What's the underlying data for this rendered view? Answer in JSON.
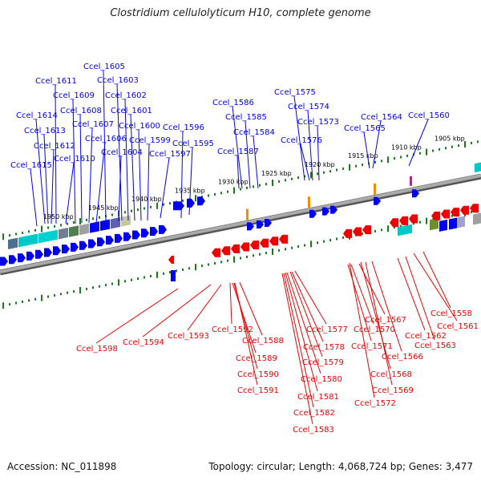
{
  "title": "Clostridium cellulolyticum H10, complete genome",
  "footer": {
    "accession": "Accession: NC_011898",
    "topology": "Topology: circular; Length: 4,068,724 bp; Genes: 3,477"
  },
  "colors": {
    "forward": "#0000ee",
    "reverse": "#ee0000",
    "rna": "#ff8800",
    "pseudo": "#ee00aa",
    "backbone": "#888888"
  },
  "scale": {
    "unit": "kbp",
    "ticks": [
      {
        "label": "1950 kbp",
        "kbp": 1950
      },
      {
        "label": "1945 kbp",
        "kbp": 1945
      },
      {
        "label": "1940 kbp",
        "kbp": 1940
      },
      {
        "label": "1935 kbp",
        "kbp": 1935
      },
      {
        "label": "1930 kbp",
        "kbp": 1930
      },
      {
        "label": "1925 kbp",
        "kbp": 1925
      },
      {
        "label": "1920 kbp",
        "kbp": 1920
      },
      {
        "label": "1915 kbp",
        "kbp": 1915
      },
      {
        "label": "1910 kbp",
        "kbp": 1910
      },
      {
        "label": "1905 kbp",
        "kbp": 1905
      }
    ]
  },
  "genes_forward": [
    "Ccel_1615",
    "Ccel_1614",
    "Ccel_1613",
    "Ccel_1612",
    "Ccel_1611",
    "Ccel_1610",
    "Ccel_1609",
    "Ccel_1608",
    "Ccel_1607",
    "Ccel_1606",
    "Ccel_1605",
    "Ccel_1604",
    "Ccel_1603",
    "Ccel_1602",
    "Ccel_1601",
    "Ccel_1600",
    "Ccel_1599",
    "Ccel_1597",
    "Ccel_1596",
    "Ccel_1595",
    "Ccel_1587",
    "Ccel_1586",
    "Ccel_1585",
    "Ccel_1584",
    "Ccel_1576",
    "Ccel_1575",
    "Ccel_1574",
    "Ccel_1573",
    "Ccel_1565",
    "Ccel_1564",
    "Ccel_1560"
  ],
  "genes_reverse": [
    "Ccel_1598",
    "Ccel_1594",
    "Ccel_1593",
    "Ccel_1592",
    "Ccel_1588",
    "Ccel_1589",
    "Ccel_1590",
    "Ccel_1591",
    "Ccel_1577",
    "Ccel_1578",
    "Ccel_1579",
    "Ccel_1580",
    "Ccel_1581",
    "Ccel_1582",
    "Ccel_1583",
    "Ccel_1567",
    "Ccel_1570",
    "Ccel_1571",
    "Ccel_1568",
    "Ccel_1569",
    "Ccel_1572",
    "Ccel_1566",
    "Ccel_1563",
    "Ccel_1562",
    "Ccel_1561",
    "Ccel_1558"
  ]
}
